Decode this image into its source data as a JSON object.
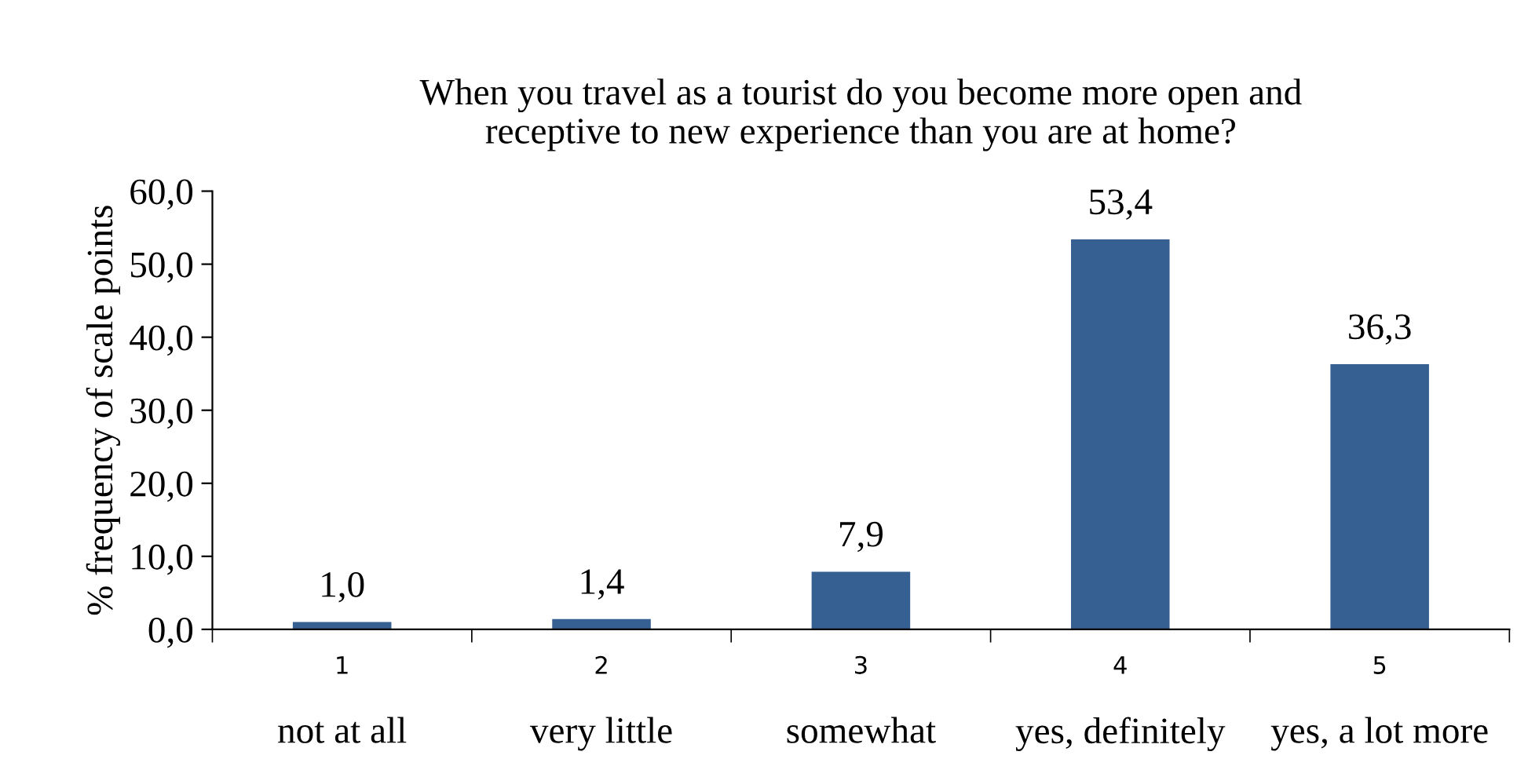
{
  "chart_data": {
    "type": "bar",
    "title": "When you travel as a tourist do you become more open and\nreceptive to new experience than you are at home?",
    "ylabel": "% frequency of scale points",
    "categories": [
      "1",
      "2",
      "3",
      "4",
      "5"
    ],
    "values": [
      1.0,
      1.4,
      7.9,
      53.4,
      36.3
    ],
    "value_labels": [
      "1,0",
      "1,4",
      "7,9",
      "53,4",
      "36,3"
    ],
    "color": "#376092",
    "ylim": [
      0,
      60
    ],
    "yticks": [
      {
        "value": 0,
        "label": "0,0"
      },
      {
        "value": 10,
        "label": "10,0"
      },
      {
        "value": 20,
        "label": "20,0"
      },
      {
        "value": 30,
        "label": "30,0"
      },
      {
        "value": 40,
        "label": "40,0"
      },
      {
        "value": 50,
        "label": "50,0"
      },
      {
        "value": 60,
        "label": "60,0"
      }
    ],
    "annotations": [
      "not at all",
      "very little",
      "somewhat",
      "yes, definitely",
      "yes, a lot more"
    ],
    "grid": false,
    "legend": false
  }
}
